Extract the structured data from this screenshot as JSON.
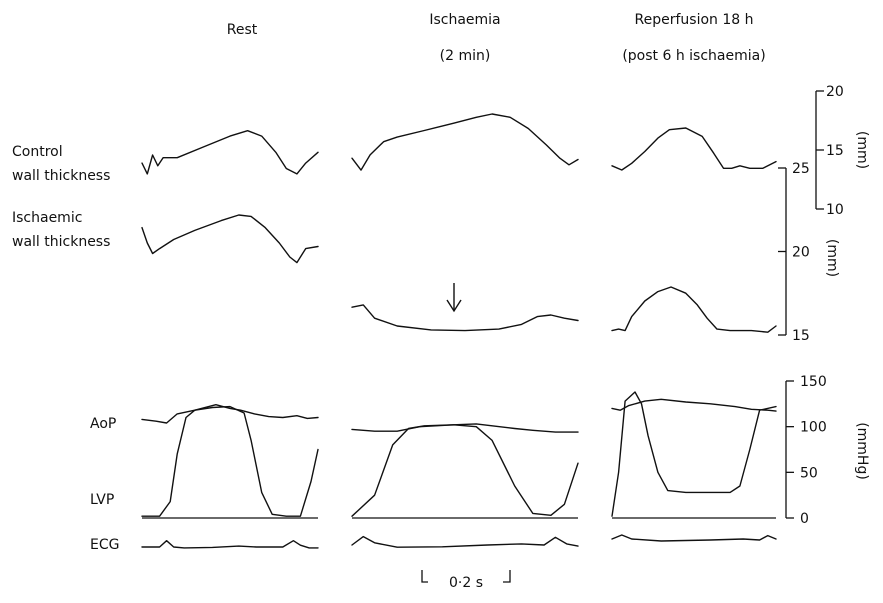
{
  "chart_data": {
    "type": "line",
    "columns": [
      {
        "title": "Rest"
      },
      {
        "title": "Ischaemia",
        "subtitle": "(2 min)"
      },
      {
        "title": "Reperfusion 18 h",
        "subtitle": "(post 6 h ischaemia)"
      }
    ],
    "row_labels": {
      "control": [
        "Control",
        "wall thickness"
      ],
      "ischaemic": [
        "Ischaemic",
        "wall thickness"
      ],
      "aop": "AoP",
      "lvp": "LVP",
      "ecg": "ECG"
    },
    "time_scale_label": "0·2 s",
    "axes": {
      "control_wall_thickness": {
        "unit": "(mm)",
        "ticks": [
          10,
          15,
          20
        ],
        "range": [
          10,
          20
        ]
      },
      "ischaemic_wall_thickness": {
        "unit": "(mm)",
        "ticks": [
          15,
          20,
          25
        ],
        "range": [
          15,
          25
        ]
      },
      "pressure": {
        "unit": "(mmHg)",
        "ticks": [
          0,
          50,
          100,
          150
        ],
        "range": [
          0,
          150
        ]
      }
    },
    "series": {
      "control_wall_thickness": [
        [
          [
            0,
            0.35
          ],
          [
            0.03,
            0.15
          ],
          [
            0.06,
            0.5
          ],
          [
            0.09,
            0.3
          ],
          [
            0.12,
            0.45
          ],
          [
            0.2,
            0.45
          ],
          [
            0.35,
            0.65
          ],
          [
            0.5,
            0.85
          ],
          [
            0.6,
            0.95
          ],
          [
            0.68,
            0.85
          ],
          [
            0.76,
            0.55
          ],
          [
            0.82,
            0.25
          ],
          [
            0.88,
            0.15
          ],
          [
            0.93,
            0.35
          ],
          [
            1,
            0.55
          ]
        ],
        [
          [
            0,
            0.3
          ],
          [
            0.04,
            0.12
          ],
          [
            0.08,
            0.35
          ],
          [
            0.14,
            0.55
          ],
          [
            0.2,
            0.62
          ],
          [
            0.32,
            0.72
          ],
          [
            0.45,
            0.83
          ],
          [
            0.55,
            0.92
          ],
          [
            0.62,
            0.97
          ],
          [
            0.7,
            0.92
          ],
          [
            0.78,
            0.75
          ],
          [
            0.86,
            0.5
          ],
          [
            0.92,
            0.3
          ],
          [
            0.96,
            0.2
          ],
          [
            1,
            0.28
          ]
        ],
        [
          [
            0,
            0.55
          ],
          [
            0.06,
            0.5
          ],
          [
            0.12,
            0.58
          ],
          [
            0.2,
            0.72
          ],
          [
            0.28,
            0.88
          ],
          [
            0.35,
            0.98
          ],
          [
            0.45,
            1.0
          ],
          [
            0.55,
            0.9
          ],
          [
            0.62,
            0.7
          ],
          [
            0.68,
            0.52
          ],
          [
            0.73,
            0.52
          ],
          [
            0.78,
            0.55
          ],
          [
            0.84,
            0.52
          ],
          [
            0.92,
            0.52
          ],
          [
            1,
            0.6
          ]
        ]
      ],
      "ischaemic_wall_thickness": [
        [
          [
            0,
            0.72
          ],
          [
            0.03,
            0.5
          ],
          [
            0.06,
            0.35
          ],
          [
            0.1,
            0.42
          ],
          [
            0.18,
            0.55
          ],
          [
            0.3,
            0.68
          ],
          [
            0.45,
            0.82
          ],
          [
            0.55,
            0.9
          ],
          [
            0.62,
            0.88
          ],
          [
            0.7,
            0.72
          ],
          [
            0.78,
            0.5
          ],
          [
            0.84,
            0.3
          ],
          [
            0.88,
            0.22
          ],
          [
            0.93,
            0.42
          ],
          [
            1,
            0.45
          ]
        ],
        [
          [
            0,
            0.42
          ],
          [
            0.05,
            0.45
          ],
          [
            0.1,
            0.28
          ],
          [
            0.2,
            0.18
          ],
          [
            0.35,
            0.13
          ],
          [
            0.5,
            0.12
          ],
          [
            0.65,
            0.14
          ],
          [
            0.75,
            0.2
          ],
          [
            0.82,
            0.3
          ],
          [
            0.88,
            0.32
          ],
          [
            0.94,
            0.28
          ],
          [
            1,
            0.25
          ]
        ],
        [
          [
            0,
            0.12
          ],
          [
            0.04,
            0.14
          ],
          [
            0.08,
            0.12
          ],
          [
            0.12,
            0.3
          ],
          [
            0.2,
            0.5
          ],
          [
            0.28,
            0.62
          ],
          [
            0.36,
            0.68
          ],
          [
            0.45,
            0.6
          ],
          [
            0.52,
            0.45
          ],
          [
            0.58,
            0.28
          ],
          [
            0.64,
            0.14
          ],
          [
            0.72,
            0.12
          ],
          [
            0.85,
            0.12
          ],
          [
            0.95,
            0.1
          ],
          [
            1,
            0.18
          ]
        ]
      ],
      "aop": [
        [
          [
            0,
            108
          ],
          [
            0.08,
            106
          ],
          [
            0.14,
            104
          ],
          [
            0.2,
            114
          ],
          [
            0.3,
            118
          ],
          [
            0.42,
            124
          ],
          [
            0.5,
            120
          ],
          [
            0.56,
            118
          ],
          [
            0.64,
            114
          ],
          [
            0.72,
            111
          ],
          [
            0.8,
            110
          ],
          [
            0.88,
            112
          ],
          [
            0.94,
            109
          ],
          [
            1,
            110
          ]
        ],
        [
          [
            0,
            97
          ],
          [
            0.1,
            95
          ],
          [
            0.2,
            95
          ],
          [
            0.3,
            100
          ],
          [
            0.45,
            102
          ],
          [
            0.55,
            103
          ],
          [
            0.62,
            101
          ],
          [
            0.72,
            98
          ],
          [
            0.8,
            96
          ],
          [
            0.9,
            94
          ],
          [
            1,
            94
          ]
        ],
        [
          [
            0,
            120
          ],
          [
            0.05,
            118
          ],
          [
            0.1,
            123
          ],
          [
            0.2,
            128
          ],
          [
            0.3,
            130
          ],
          [
            0.45,
            127
          ],
          [
            0.6,
            125
          ],
          [
            0.75,
            122
          ],
          [
            0.85,
            119
          ],
          [
            0.95,
            118
          ],
          [
            1,
            117
          ]
        ]
      ],
      "lvp": [
        [
          [
            0,
            2
          ],
          [
            0.1,
            2
          ],
          [
            0.16,
            18
          ],
          [
            0.2,
            70
          ],
          [
            0.25,
            110
          ],
          [
            0.3,
            118
          ],
          [
            0.4,
            121
          ],
          [
            0.5,
            122
          ],
          [
            0.58,
            115
          ],
          [
            0.62,
            85
          ],
          [
            0.68,
            28
          ],
          [
            0.74,
            4
          ],
          [
            0.82,
            2
          ],
          [
            0.9,
            2
          ],
          [
            0.96,
            40
          ],
          [
            1,
            75
          ]
        ],
        [
          [
            0,
            2
          ],
          [
            0.1,
            25
          ],
          [
            0.18,
            80
          ],
          [
            0.25,
            98
          ],
          [
            0.32,
            101
          ],
          [
            0.45,
            102
          ],
          [
            0.55,
            100
          ],
          [
            0.62,
            85
          ],
          [
            0.72,
            35
          ],
          [
            0.8,
            5
          ],
          [
            0.88,
            3
          ],
          [
            0.94,
            15
          ],
          [
            1,
            60
          ]
        ],
        [
          [
            0,
            2
          ],
          [
            0.04,
            50
          ],
          [
            0.08,
            128
          ],
          [
            0.14,
            138
          ],
          [
            0.18,
            125
          ],
          [
            0.22,
            90
          ],
          [
            0.28,
            50
          ],
          [
            0.34,
            30
          ],
          [
            0.45,
            28
          ],
          [
            0.6,
            28
          ],
          [
            0.72,
            28
          ],
          [
            0.78,
            35
          ],
          [
            0.84,
            75
          ],
          [
            0.9,
            118
          ],
          [
            1,
            122
          ]
        ]
      ],
      "ecg": [
        [
          [
            0,
            0.5
          ],
          [
            0.1,
            0.5
          ],
          [
            0.14,
            0.85
          ],
          [
            0.18,
            0.5
          ],
          [
            0.24,
            0.45
          ],
          [
            0.4,
            0.48
          ],
          [
            0.55,
            0.55
          ],
          [
            0.65,
            0.5
          ],
          [
            0.8,
            0.5
          ],
          [
            0.86,
            0.85
          ],
          [
            0.9,
            0.6
          ],
          [
            0.95,
            0.45
          ],
          [
            1,
            0.45
          ]
        ],
        [
          [
            0,
            0.5
          ],
          [
            0.05,
            0.88
          ],
          [
            0.1,
            0.6
          ],
          [
            0.2,
            0.4
          ],
          [
            0.4,
            0.42
          ],
          [
            0.6,
            0.5
          ],
          [
            0.75,
            0.55
          ],
          [
            0.85,
            0.5
          ],
          [
            0.9,
            0.85
          ],
          [
            0.95,
            0.55
          ],
          [
            1,
            0.45
          ]
        ],
        [
          [
            0,
            0.55
          ],
          [
            0.06,
            0.75
          ],
          [
            0.12,
            0.55
          ],
          [
            0.3,
            0.45
          ],
          [
            0.6,
            0.5
          ],
          [
            0.8,
            0.55
          ],
          [
            0.9,
            0.5
          ],
          [
            0.95,
            0.72
          ],
          [
            1,
            0.55
          ]
        ]
      ]
    }
  }
}
